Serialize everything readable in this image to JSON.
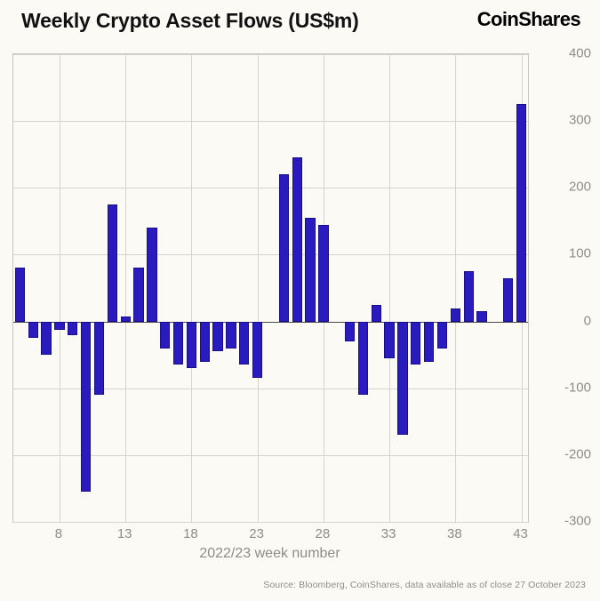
{
  "header": {
    "title": "Weekly Crypto Asset Flows (US$m)",
    "logo": "CoinShares"
  },
  "chart_data": {
    "type": "bar",
    "title": "Weekly Crypto Asset Flows (US$m)",
    "xlabel": "2022/23 week number",
    "ylabel": "",
    "ylim": [
      -300,
      400
    ],
    "yticks": [
      400,
      300,
      200,
      100,
      0,
      -100,
      -200,
      -300
    ],
    "xticks": [
      8,
      13,
      18,
      23,
      28,
      33,
      38,
      43
    ],
    "grid": true,
    "legend": false,
    "bar_color": "#2a1bbf",
    "weeks": [
      5,
      6,
      7,
      8,
      9,
      10,
      11,
      12,
      13,
      14,
      15,
      16,
      17,
      18,
      19,
      20,
      21,
      22,
      23,
      24,
      25,
      26,
      27,
      28,
      29,
      30,
      31,
      32,
      33,
      34,
      35,
      36,
      37,
      38,
      39,
      40,
      41,
      42,
      43
    ],
    "values": [
      80,
      -25,
      -50,
      -12,
      -20,
      -255,
      -110,
      175,
      8,
      80,
      140,
      -40,
      -65,
      -70,
      -60,
      -45,
      -40,
      -65,
      -85,
      0,
      220,
      245,
      155,
      145,
      0,
      -30,
      -110,
      25,
      -55,
      -170,
      -65,
      -60,
      -40,
      20,
      75,
      15,
      0,
      65,
      325
    ]
  },
  "footer": {
    "source": "Source: Bloomberg, CoinShares, data available as of close 27 October 2023"
  }
}
